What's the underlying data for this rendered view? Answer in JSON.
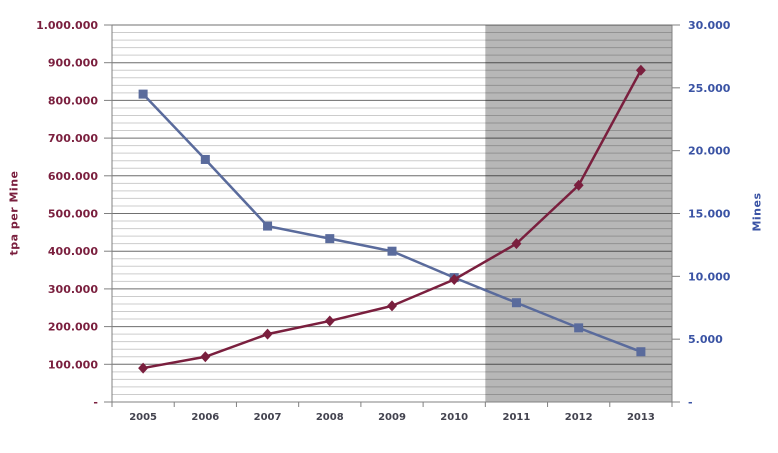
{
  "chart_data": {
    "type": "line",
    "title": "",
    "categories": [
      "2005",
      "2006",
      "2007",
      "2008",
      "2009",
      "2010",
      "2011",
      "2012",
      "2013"
    ],
    "series": [
      {
        "name": "tpa per Mine",
        "axis": "left",
        "marker": "diamond",
        "color": "#7a1f3e",
        "values": [
          90000,
          120000,
          180000,
          215000,
          255000,
          325000,
          420000,
          575000,
          880000
        ]
      },
      {
        "name": "Mines",
        "axis": "right",
        "marker": "square",
        "color": "#5a6b9c",
        "values": [
          24500,
          19300,
          14000,
          13000,
          12000,
          9900,
          7900,
          5900,
          4000
        ]
      }
    ],
    "left_axis": {
      "title": "tpa per Mine",
      "min": 0,
      "max": 1000000,
      "major_step": 100000,
      "minor_step": 20000,
      "color": "#7a1f3e",
      "tick_labels": [
        "1.000.000",
        "900.000",
        "800.000",
        "700.000",
        "600.000",
        "500.000",
        "400.000",
        "300.000",
        "200.000",
        "100.000",
        "-"
      ]
    },
    "right_axis": {
      "title": "Mines",
      "min": 0,
      "max": 30000,
      "major_step": 5000,
      "color": "#3a53a4",
      "tick_labels": [
        "30.000",
        "25.000",
        "20.000",
        "15.000",
        "10.000",
        "5.000",
        "-"
      ]
    },
    "highlight_region": {
      "from_category": "2011",
      "to_category": "2013",
      "color": "#b7b7b7"
    },
    "grid": "minor+major horizontal",
    "legend": "none",
    "colors": {
      "axis_line": "#808080",
      "x_label": "#43434f",
      "grid_minor": "rgba(0,0,0,0.20)",
      "grid_major": "rgba(0,0,0,0.45)"
    }
  }
}
